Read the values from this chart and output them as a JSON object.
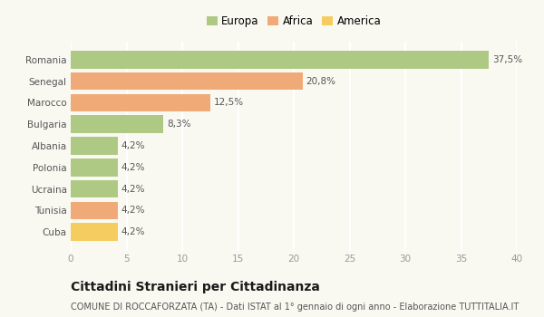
{
  "categories": [
    "Romania",
    "Senegal",
    "Marocco",
    "Bulgaria",
    "Albania",
    "Polonia",
    "Ucraina",
    "Tunisia",
    "Cuba"
  ],
  "values": [
    37.5,
    20.8,
    12.5,
    8.3,
    4.2,
    4.2,
    4.2,
    4.2,
    4.2
  ],
  "colors": [
    "#aec984",
    "#f0aa78",
    "#f0aa78",
    "#aec984",
    "#aec984",
    "#aec984",
    "#aec984",
    "#f0aa78",
    "#f5cc60"
  ],
  "legend_labels": [
    "Europa",
    "Africa",
    "America"
  ],
  "legend_colors": [
    "#aec984",
    "#f0aa78",
    "#f5cc60"
  ],
  "title": "Cittadini Stranieri per Cittadinanza",
  "subtitle": "COMUNE DI ROCCAFORZATA (TA) - Dati ISTAT al 1° gennaio di ogni anno - Elaborazione TUTTITALIA.IT",
  "xlim": [
    0,
    40
  ],
  "xticks": [
    0,
    5,
    10,
    15,
    20,
    25,
    30,
    35,
    40
  ],
  "background_color": "#f9f9f2",
  "grid_color": "#ffffff",
  "bar_height": 0.82,
  "title_fontsize": 10,
  "subtitle_fontsize": 7,
  "label_fontsize": 7.5,
  "tick_fontsize": 7.5,
  "legend_fontsize": 8.5
}
